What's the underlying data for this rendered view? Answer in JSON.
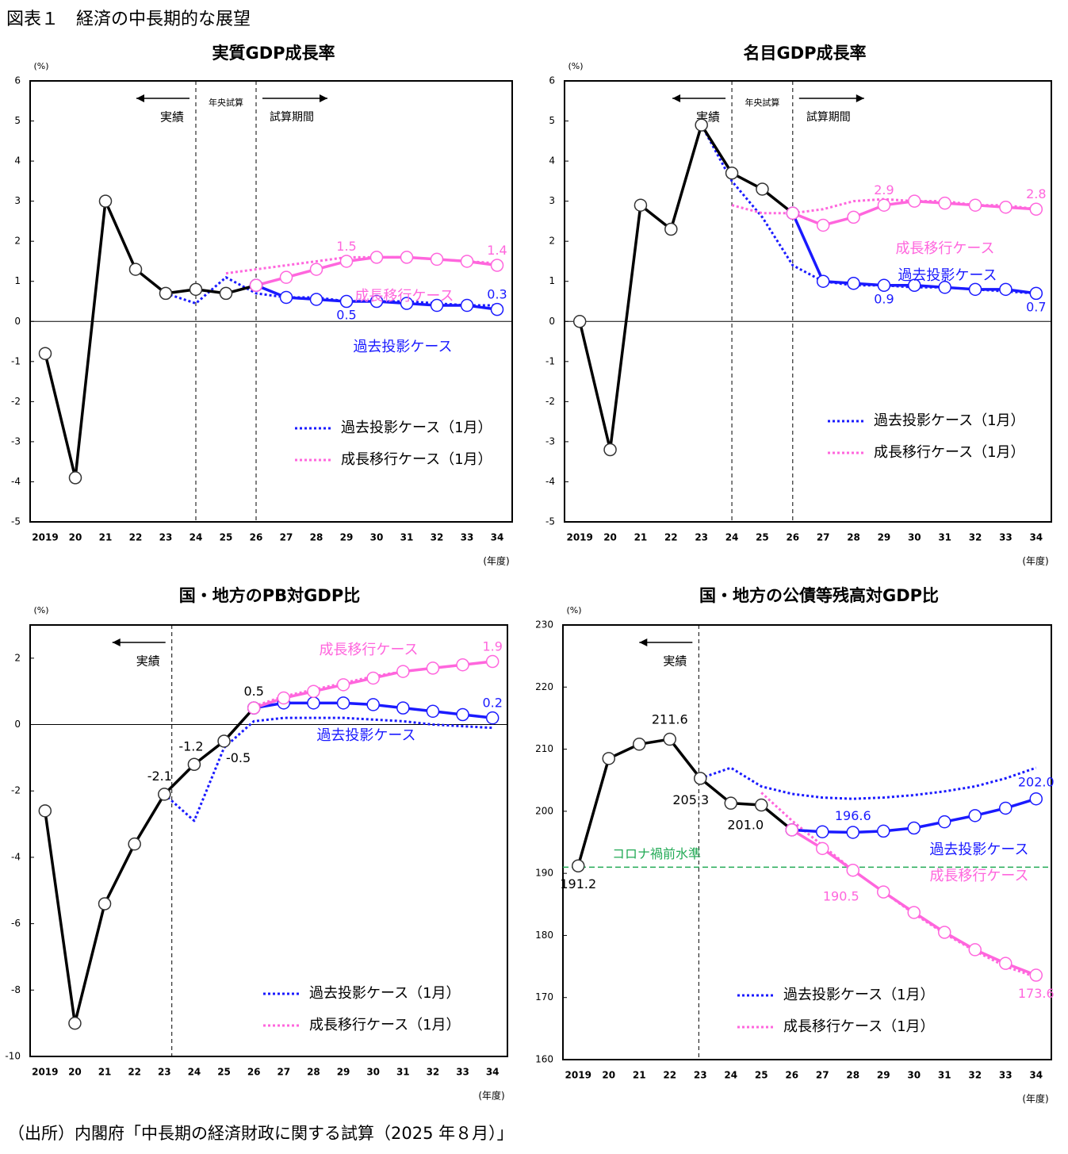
{
  "title": "図表１　経済の中長期的な展望",
  "source": "（出所）内閣府「中長期の経済財政に関する試算（2025 年８月）」",
  "chart_data": [
    {
      "type": "line",
      "title": "実質GDP成長率",
      "ylabel": "(%)",
      "xlabel": "(年度)",
      "periods": [
        "実績",
        "年央試算",
        "試算期間"
      ],
      "categories": [
        "2019",
        "20",
        "21",
        "22",
        "23",
        "24",
        "25",
        "26",
        "27",
        "28",
        "29",
        "30",
        "31",
        "32",
        "33",
        "34"
      ],
      "ylim": [
        -5,
        6
      ],
      "yticks": [
        -5,
        -4,
        -3,
        -2,
        -1,
        0,
        1,
        2,
        3,
        4,
        5,
        6
      ],
      "series": [
        {
          "color": "#000000",
          "style": "solid",
          "markers": true,
          "values": [
            -0.8,
            -3.9,
            3.0,
            1.3,
            0.7,
            0.8,
            0.7,
            0.9,
            null,
            null,
            null,
            null,
            null,
            null,
            null,
            null
          ]
        },
        {
          "name": "過去投影ケース",
          "color": "#1a1aff",
          "style": "solid",
          "markers": true,
          "values": [
            null,
            null,
            null,
            null,
            null,
            null,
            null,
            0.9,
            0.6,
            0.55,
            0.5,
            0.5,
            0.45,
            0.4,
            0.4,
            0.3
          ],
          "value_labels": [
            null,
            null,
            null,
            null,
            null,
            null,
            null,
            null,
            null,
            null,
            "0.5",
            null,
            null,
            null,
            null,
            "0.3"
          ]
        },
        {
          "name": "成長移行ケース",
          "color": "#ff66dd",
          "style": "solid",
          "markers": true,
          "values": [
            null,
            null,
            null,
            null,
            null,
            null,
            null,
            0.9,
            1.1,
            1.3,
            1.5,
            1.6,
            1.6,
            1.55,
            1.5,
            1.4
          ],
          "value_labels": [
            null,
            null,
            null,
            null,
            null,
            null,
            null,
            null,
            null,
            null,
            "1.5",
            null,
            null,
            null,
            null,
            "1.4"
          ]
        },
        {
          "name": "過去投影ケース（1月）",
          "color": "#1a1aff",
          "style": "dotted",
          "markers": false,
          "values": [
            null,
            null,
            null,
            null,
            0.7,
            0.45,
            1.1,
            0.7,
            0.6,
            0.6,
            0.5,
            0.5,
            0.5,
            0.45,
            0.4,
            0.4
          ]
        },
        {
          "name": "成長移行ケース（1月）",
          "color": "#ff66dd",
          "style": "dotted",
          "markers": false,
          "values": [
            null,
            null,
            null,
            null,
            null,
            null,
            1.2,
            1.3,
            1.4,
            1.5,
            1.6,
            1.6,
            1.6,
            1.55,
            1.5,
            1.45
          ]
        }
      ]
    },
    {
      "type": "line",
      "title": "名目GDP成長率",
      "ylabel": "(%)",
      "xlabel": "(年度)",
      "periods": [
        "実績",
        "年央試算",
        "試算期間"
      ],
      "categories": [
        "2019",
        "20",
        "21",
        "22",
        "23",
        "24",
        "25",
        "26",
        "27",
        "28",
        "29",
        "30",
        "31",
        "32",
        "33",
        "34"
      ],
      "ylim": [
        -5,
        6
      ],
      "yticks": [
        -5,
        -4,
        -3,
        -2,
        -1,
        0,
        1,
        2,
        3,
        4,
        5,
        6
      ],
      "series": [
        {
          "color": "#000000",
          "style": "solid",
          "markers": true,
          "values": [
            0,
            -3.2,
            2.9,
            2.3,
            4.9,
            3.7,
            3.3,
            2.7,
            null,
            null,
            null,
            null,
            null,
            null,
            null,
            null
          ]
        },
        {
          "name": "過去投影ケース",
          "color": "#1a1aff",
          "style": "solid",
          "markers": true,
          "values": [
            null,
            null,
            null,
            null,
            null,
            null,
            null,
            2.7,
            1.0,
            0.95,
            0.9,
            0.9,
            0.85,
            0.8,
            0.8,
            0.7
          ],
          "value_labels": [
            null,
            null,
            null,
            null,
            null,
            null,
            null,
            null,
            null,
            null,
            "0.9",
            null,
            null,
            null,
            null,
            "0.7"
          ]
        },
        {
          "name": "成長移行ケース",
          "color": "#ff66dd",
          "style": "solid",
          "markers": true,
          "values": [
            null,
            null,
            null,
            null,
            null,
            null,
            null,
            2.7,
            2.4,
            2.6,
            2.9,
            3.0,
            2.95,
            2.9,
            2.85,
            2.8
          ],
          "value_labels": [
            null,
            null,
            null,
            null,
            null,
            null,
            null,
            null,
            null,
            null,
            "2.9",
            null,
            null,
            null,
            null,
            "2.8"
          ]
        },
        {
          "name": "過去投影ケース（1月）",
          "color": "#1a1aff",
          "style": "dotted",
          "markers": false,
          "values": [
            null,
            null,
            null,
            null,
            4.9,
            3.5,
            2.6,
            1.4,
            1.0,
            0.9,
            0.9,
            0.85,
            0.85,
            0.8,
            0.75,
            0.7
          ]
        },
        {
          "name": "成長移行ケース（1月）",
          "color": "#ff66dd",
          "style": "dotted",
          "markers": false,
          "values": [
            null,
            null,
            null,
            null,
            null,
            2.9,
            2.7,
            2.7,
            2.8,
            3.0,
            3.05,
            3.0,
            3.0,
            2.9,
            2.9,
            2.8
          ]
        }
      ]
    },
    {
      "type": "line",
      "title": "国・地方のPB対GDP比",
      "ylabel": "(%)",
      "xlabel": "(年度)",
      "periods": [
        "実績"
      ],
      "categories": [
        "2019",
        "20",
        "21",
        "22",
        "23",
        "24",
        "25",
        "26",
        "27",
        "28",
        "29",
        "30",
        "31",
        "32",
        "33",
        "34"
      ],
      "ylim": [
        -10,
        3
      ],
      "yticks": [
        -10,
        -8,
        -6,
        -4,
        -2,
        0,
        2
      ],
      "series": [
        {
          "color": "#000000",
          "style": "solid",
          "markers": true,
          "values": [
            -2.6,
            -9.0,
            -5.4,
            -3.6,
            -2.1,
            -1.2,
            -0.5,
            0.5,
            null,
            null,
            null,
            null,
            null,
            null,
            null,
            null
          ],
          "value_labels": [
            null,
            null,
            null,
            null,
            "-2.1",
            "-1.2",
            "-0.5",
            "0.5",
            null,
            null,
            null,
            null,
            null,
            null,
            null,
            null
          ]
        },
        {
          "name": "過去投影ケース",
          "color": "#1a1aff",
          "style": "solid",
          "markers": true,
          "values": [
            null,
            null,
            null,
            null,
            null,
            null,
            null,
            0.5,
            0.65,
            0.65,
            0.65,
            0.6,
            0.5,
            0.4,
            0.3,
            0.2
          ],
          "value_labels": [
            null,
            null,
            null,
            null,
            null,
            null,
            null,
            null,
            null,
            null,
            null,
            null,
            null,
            null,
            null,
            "0.2"
          ]
        },
        {
          "name": "成長移行ケース",
          "color": "#ff66dd",
          "style": "solid",
          "markers": true,
          "values": [
            null,
            null,
            null,
            null,
            null,
            null,
            null,
            0.5,
            0.8,
            1.0,
            1.2,
            1.4,
            1.6,
            1.7,
            1.8,
            1.9
          ],
          "value_labels": [
            null,
            null,
            null,
            null,
            null,
            null,
            null,
            null,
            null,
            null,
            null,
            null,
            null,
            null,
            null,
            "1.9"
          ]
        },
        {
          "name": "過去投影ケース（1月）",
          "color": "#1a1aff",
          "style": "dotted",
          "markers": false,
          "values": [
            null,
            null,
            null,
            null,
            -2.1,
            -2.9,
            -0.7,
            0.1,
            0.2,
            0.2,
            0.2,
            0.15,
            0.1,
            0.0,
            -0.05,
            -0.1
          ]
        },
        {
          "name": "成長移行ケース（1月）",
          "color": "#ff66dd",
          "style": "dotted",
          "markers": false,
          "values": [
            null,
            null,
            null,
            null,
            null,
            null,
            null,
            0.55,
            0.85,
            1.05,
            1.25,
            1.45,
            1.6,
            1.7,
            1.8,
            1.9
          ]
        }
      ]
    },
    {
      "type": "line",
      "title": "国・地方の公債等残高対GDP比",
      "ylabel": "(%)",
      "xlabel": "(年度)",
      "periods": [
        "実績"
      ],
      "categories": [
        "2019",
        "20",
        "21",
        "22",
        "23",
        "24",
        "25",
        "26",
        "27",
        "28",
        "29",
        "30",
        "31",
        "32",
        "33",
        "34"
      ],
      "ylim": [
        160,
        230
      ],
      "yticks": [
        160,
        170,
        180,
        190,
        200,
        210,
        220,
        230
      ],
      "reference": {
        "value": 191,
        "label": "コロナ禍前水準",
        "color": "#22aa55"
      },
      "series": [
        {
          "color": "#000000",
          "style": "solid",
          "markers": true,
          "values": [
            191.2,
            208.5,
            210.8,
            211.6,
            205.3,
            201.3,
            201.0,
            197.0,
            null,
            null,
            null,
            null,
            null,
            null,
            null,
            null
          ],
          "value_labels": [
            "191.2",
            null,
            null,
            "211.6",
            "205.3",
            null,
            "201.0",
            null,
            null,
            null,
            null,
            null,
            null,
            null,
            null,
            null
          ]
        },
        {
          "name": "過去投影ケース",
          "color": "#1a1aff",
          "style": "solid",
          "markers": true,
          "values": [
            null,
            null,
            null,
            null,
            null,
            null,
            null,
            197.0,
            196.7,
            196.6,
            196.8,
            197.3,
            198.3,
            199.3,
            200.5,
            202.0
          ],
          "value_labels": [
            null,
            null,
            null,
            null,
            null,
            null,
            null,
            null,
            null,
            "196.6",
            null,
            null,
            null,
            null,
            null,
            "202.0"
          ]
        },
        {
          "name": "成長移行ケース",
          "color": "#ff66dd",
          "style": "solid",
          "markers": true,
          "values": [
            null,
            null,
            null,
            null,
            null,
            null,
            null,
            197.0,
            194.0,
            190.5,
            187.0,
            183.7,
            180.5,
            177.7,
            175.5,
            173.6
          ],
          "value_labels": [
            null,
            null,
            null,
            null,
            null,
            null,
            null,
            null,
            null,
            "190.5",
            null,
            null,
            null,
            null,
            null,
            "173.6"
          ]
        },
        {
          "name": "過去投影ケース（1月）",
          "color": "#1a1aff",
          "style": "dotted",
          "markers": false,
          "values": [
            null,
            null,
            null,
            null,
            205.3,
            207.0,
            204.0,
            202.8,
            202.2,
            202.0,
            202.2,
            202.6,
            203.2,
            204.0,
            205.3,
            207.0
          ]
        },
        {
          "name": "成長移行ケース（1月）",
          "color": "#ff66dd",
          "style": "dotted",
          "markers": false,
          "values": [
            null,
            null,
            null,
            null,
            null,
            null,
            203.0,
            198.5,
            194.5,
            190.5,
            187.0,
            183.5,
            180.3,
            177.5,
            175.0,
            173.3
          ]
        }
      ]
    }
  ]
}
